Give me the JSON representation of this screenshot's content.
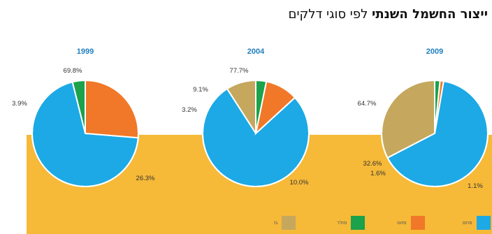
{
  "title": {
    "bold": "ייצור החשמל השנתי",
    "rest": "לפי סוגי דלקים"
  },
  "colors": {
    "coal": "#1ca9e6",
    "oil": "#f07828",
    "other": "#1ba24b",
    "gas": "#c5a85e",
    "band": "#f6b938",
    "year": "#1f7fc0"
  },
  "legend": [
    {
      "label": "פחם",
      "color": "#1ca9e6"
    },
    {
      "label": "מזוט",
      "color": "#f07828"
    },
    {
      "label": "סולר",
      "color": "#1ba24b"
    },
    {
      "label": "גז",
      "color": "#c5a85e"
    }
  ],
  "chart_data": [
    {
      "type": "pie",
      "title": "1999",
      "slices": [
        {
          "label": "פחם",
          "value": 69.8,
          "text": "69.8%"
        },
        {
          "label": "מזוט",
          "value": 26.3,
          "text": "26.3%"
        },
        {
          "label": "סולר",
          "value": 3.9,
          "text": "3.9%"
        }
      ]
    },
    {
      "type": "pie",
      "title": "2004",
      "slices": [
        {
          "label": "פחם",
          "value": 77.7,
          "text": "77.7%"
        },
        {
          "label": "מזוט",
          "value": 10.0,
          "text": "10.0%"
        },
        {
          "label": "סולר",
          "value": 3.2,
          "text": "3.2%"
        },
        {
          "label": "גז",
          "value": 9.1,
          "text": "9.1%"
        }
      ]
    },
    {
      "type": "pie",
      "title": "2009",
      "slices": [
        {
          "label": "פחם",
          "value": 64.7,
          "text": "64.7%"
        },
        {
          "label": "מזוט",
          "value": 1.1,
          "text": "1.1%"
        },
        {
          "label": "סולר",
          "value": 1.6,
          "text": "1.6%"
        },
        {
          "label": "גז",
          "value": 32.6,
          "text": "32.6%"
        }
      ]
    }
  ]
}
